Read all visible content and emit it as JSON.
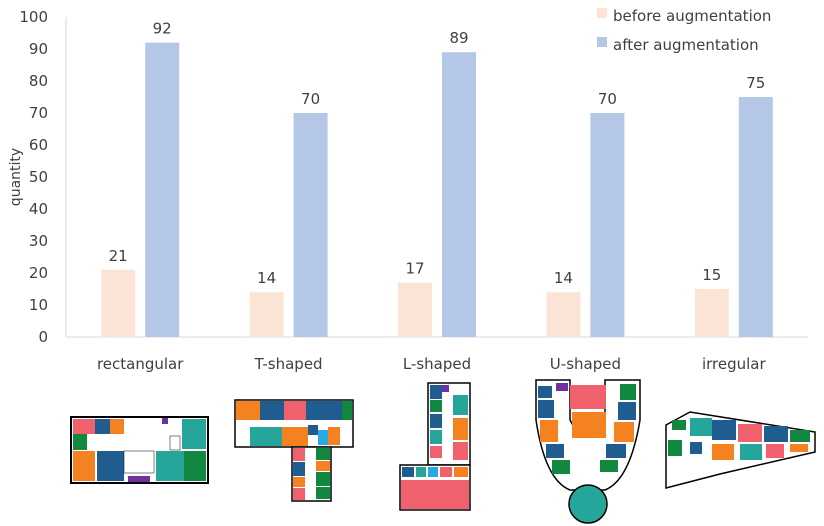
{
  "chart_data": {
    "type": "bar",
    "categories": [
      "rectangular",
      "T-shaped",
      "L-shaped",
      "U-shaped",
      "irregular"
    ],
    "series": [
      {
        "name": "before augmentation",
        "values": [
          21,
          14,
          17,
          14,
          15
        ],
        "color": "#fbe4d6"
      },
      {
        "name": "after augmentation",
        "values": [
          92,
          70,
          89,
          70,
          75
        ],
        "color": "#b4c7e7"
      }
    ],
    "title": "",
    "xlabel": "",
    "ylabel": "quantity",
    "ylim": [
      0,
      100
    ],
    "yticks": [
      0,
      10,
      20,
      30,
      40,
      50,
      60,
      70,
      80,
      90,
      100
    ],
    "grid": false,
    "legend_position": "top-right",
    "data_labels": true
  },
  "floor_plans": [
    {
      "shape": "rectangular"
    },
    {
      "shape": "T-shaped"
    },
    {
      "shape": "L-shaped"
    },
    {
      "shape": "U-shaped"
    },
    {
      "shape": "irregular"
    }
  ],
  "plan_colors": {
    "orange": "#f58220",
    "blue": "#1f5d91",
    "teal": "#26a69a",
    "green": "#12873f",
    "red": "#f0616d",
    "purple": "#7030a0",
    "cyan": "#27aae1"
  }
}
